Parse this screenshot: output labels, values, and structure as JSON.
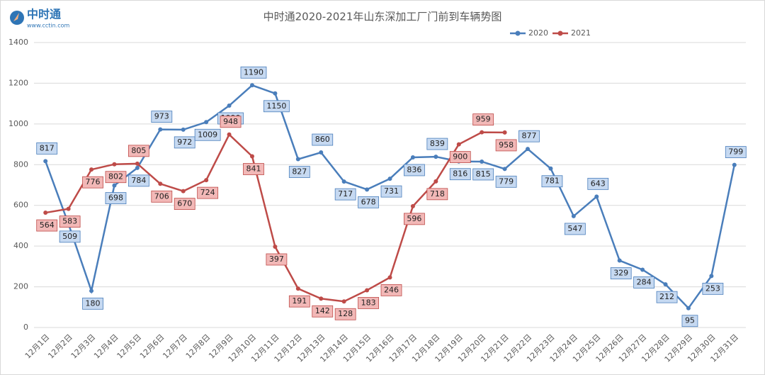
{
  "logo": {
    "name": "中时通",
    "url": "www.cctin.com"
  },
  "chart_data": {
    "type": "line",
    "title": "中时通2020-2021年山东深加工厂门前到车辆势图",
    "categories": [
      "12月1日",
      "12月2日",
      "12月3日",
      "12月4日",
      "12月5日",
      "12月6日",
      "12月7日",
      "12月8日",
      "12月9日",
      "12月10日",
      "12月11日",
      "12月12日",
      "12月13日",
      "12月14日",
      "12月15日",
      "12月16日",
      "12月17日",
      "12月18日",
      "12月19日",
      "12月20日",
      "12月21日",
      "12月22日",
      "12月23日",
      "12月24日",
      "12月25日",
      "12月26日",
      "12月27日",
      "12月28日",
      "12月29日",
      "12月30日",
      "12月31日"
    ],
    "series": [
      {
        "name": "2020",
        "color": "#4a7ebb",
        "label_fill": "#c6d9f1",
        "label_border": "#4a7ebb",
        "values": [
          817,
          509,
          180,
          698,
          784,
          973,
          972,
          1009,
          1090,
          1190,
          1150,
          827,
          860,
          717,
          678,
          731,
          836,
          839,
          816,
          815,
          779,
          877,
          781,
          547,
          643,
          329,
          284,
          212,
          95,
          253,
          799
        ]
      },
      {
        "name": "2021",
        "color": "#be4b48",
        "label_fill": "#f2b8b7",
        "label_border": "#be4b48",
        "values": [
          564,
          583,
          776,
          802,
          805,
          706,
          670,
          724,
          948,
          841,
          397,
          191,
          142,
          128,
          183,
          246,
          596,
          718,
          900,
          959,
          958,
          null,
          null,
          null,
          null,
          null,
          null,
          null,
          null,
          null,
          null
        ]
      }
    ],
    "ylim": [
      0,
      1400
    ],
    "yticks": [
      0,
      200,
      400,
      600,
      800,
      1000,
      1200,
      1400
    ],
    "grid": true,
    "legend": "top"
  }
}
